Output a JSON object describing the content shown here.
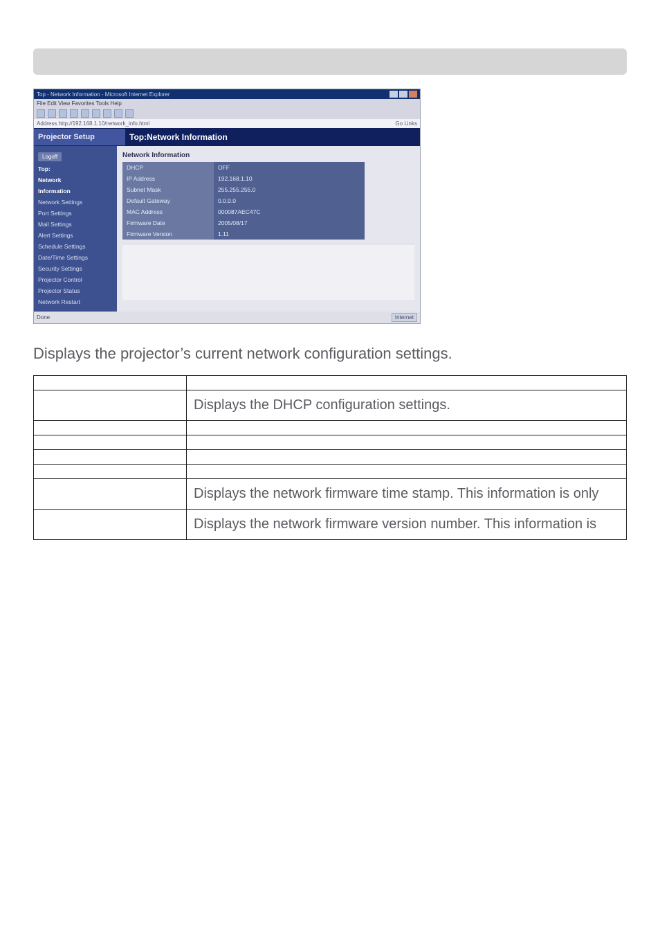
{
  "description": "Displays the projector’s current network configuration settings.",
  "screenshot": {
    "window_title": "Top - Network Information - Microsoft Internet Explorer",
    "menu": "File   Edit   View   Favorites   Tools   Help",
    "address": "Address   http://192.168.1.10/network_info.html",
    "go_hint": "Go   Links",
    "setup_left": "Projector Setup",
    "setup_right": "Top:Network Information",
    "sidebar": {
      "logoff": "Logoff",
      "items": [
        "Top:",
        "Network",
        "Information",
        "Network Settings",
        "Port Settings",
        "Mail Settings",
        "Alert Settings",
        "Schedule Settings",
        "Date/Time Settings",
        "Security Settings",
        "Projector Control",
        "Projector Status",
        "Network Restart"
      ]
    },
    "panel_title": "Network Information",
    "rows": [
      {
        "label": "DHCP",
        "value": "OFF"
      },
      {
        "label": "IP Address",
        "value": "192.168.1.10"
      },
      {
        "label": "Subnet Mask",
        "value": "255.255.255.0"
      },
      {
        "label": "Default Gateway",
        "value": "0.0.0.0"
      },
      {
        "label": "MAC Address",
        "value": "000087AEC47C"
      },
      {
        "label": "Firmware Date",
        "value": "2005/08/17"
      },
      {
        "label": "Firmware Version",
        "value": "1.11"
      }
    ],
    "status_left": "Done",
    "status_right": "Internet"
  },
  "table": {
    "left_col_width": 200,
    "rows": [
      {
        "item": "",
        "desc": ""
      },
      {
        "item": "",
        "desc": "Displays the DHCP configuration settings."
      },
      {
        "item": "",
        "desc": ""
      },
      {
        "item": "",
        "desc": ""
      },
      {
        "item": "",
        "desc": ""
      },
      {
        "item": "",
        "desc": ""
      },
      {
        "item": "",
        "desc": "Displays the network firmware time stamp. This information is only"
      },
      {
        "item": "",
        "desc": "Displays the network firmware version number. This information is"
      }
    ]
  }
}
